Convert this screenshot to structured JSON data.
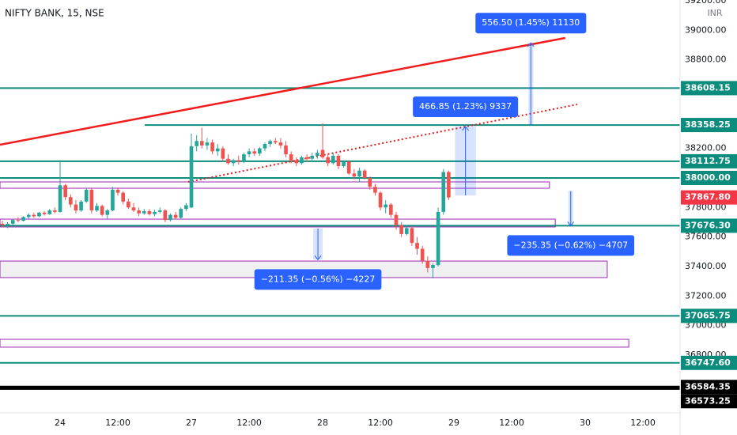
{
  "chart_data": {
    "type": "candlestick",
    "title": "NIFTY BANK, 15, NSE",
    "currency": "INR",
    "up_color": "#26a69a",
    "down_color": "#ef5350",
    "xlim": [
      -0.45,
      129.07
    ],
    "ylim": [
      36259,
      39205
    ],
    "xticks": [
      {
        "value": 11,
        "label": "24"
      },
      {
        "value": 22,
        "label": "12:00"
      },
      {
        "value": 36,
        "label": "27"
      },
      {
        "value": 47,
        "label": "12:00"
      },
      {
        "value": 61,
        "label": "28"
      },
      {
        "value": 72,
        "label": "12:00"
      },
      {
        "value": 86,
        "label": "29"
      },
      {
        "value": 97,
        "label": "12:00"
      },
      {
        "value": 111,
        "label": "30"
      },
      {
        "value": 122,
        "label": "12:00"
      }
    ],
    "yticks": [
      {
        "value": 39200,
        "label": "39200.00"
      },
      {
        "value": 39000,
        "label": "39000.00"
      },
      {
        "value": 38800,
        "label": "38800.00"
      },
      {
        "value": 38200,
        "label": "38200.00"
      },
      {
        "value": 37800,
        "label": "37800.00"
      },
      {
        "value": 37600,
        "label": "37600.00"
      },
      {
        "value": 37400,
        "label": "37400.00"
      },
      {
        "value": 37200,
        "label": "37200.00"
      },
      {
        "value": 37000,
        "label": "37000.00"
      },
      {
        "value": 36800,
        "label": "36800.00"
      }
    ],
    "candles": [
      [
        37690,
        37710,
        37665,
        37680
      ],
      [
        37680,
        37700,
        37660,
        37690
      ],
      [
        37690,
        37720,
        37680,
        37715
      ],
      [
        37715,
        37735,
        37700,
        37710
      ],
      [
        37710,
        37740,
        37705,
        37735
      ],
      [
        37735,
        37760,
        37720,
        37750
      ],
      [
        37750,
        37765,
        37730,
        37740
      ],
      [
        37740,
        37770,
        37735,
        37765
      ],
      [
        37765,
        37775,
        37745,
        37755
      ],
      [
        37755,
        37790,
        37750,
        37780
      ],
      [
        37780,
        37800,
        37760,
        37770
      ],
      [
        37770,
        38120,
        37765,
        37950
      ],
      [
        37950,
        37960,
        37850,
        37870
      ],
      [
        37870,
        37890,
        37800,
        37820
      ],
      [
        37820,
        37850,
        37760,
        37780
      ],
      [
        37780,
        37850,
        37770,
        37840
      ],
      [
        37840,
        37930,
        37830,
        37920
      ],
      [
        37920,
        37935,
        37760,
        37780
      ],
      [
        37780,
        37830,
        37770,
        37810
      ],
      [
        37810,
        37820,
        37740,
        37750
      ],
      [
        37750,
        37790,
        37720,
        37780
      ],
      [
        37780,
        37940,
        37775,
        37920
      ],
      [
        37920,
        37935,
        37880,
        37900
      ],
      [
        37900,
        37910,
        37820,
        37840
      ],
      [
        37840,
        37860,
        37790,
        37800
      ],
      [
        37800,
        37830,
        37770,
        37780
      ],
      [
        37780,
        37800,
        37740,
        37760
      ],
      [
        37760,
        37790,
        37750,
        37775
      ],
      [
        37775,
        37790,
        37745,
        37755
      ],
      [
        37755,
        37785,
        37740,
        37770
      ],
      [
        37770,
        37800,
        37760,
        37780
      ],
      [
        37780,
        37790,
        37700,
        37715
      ],
      [
        37715,
        37760,
        37705,
        37750
      ],
      [
        37750,
        37770,
        37720,
        37730
      ],
      [
        37730,
        37800,
        37725,
        37790
      ],
      [
        37790,
        37830,
        37775,
        37815
      ],
      [
        37800,
        38300,
        37795,
        38215
      ],
      [
        38215,
        38290,
        38180,
        38250
      ],
      [
        38250,
        38340,
        38200,
        38220
      ],
      [
        38220,
        38270,
        38190,
        38240
      ],
      [
        38240,
        38260,
        38160,
        38180
      ],
      [
        38180,
        38230,
        38150,
        38200
      ],
      [
        38200,
        38215,
        38110,
        38130
      ],
      [
        38130,
        38160,
        38090,
        38100
      ],
      [
        38100,
        38130,
        38080,
        38120
      ],
      [
        38120,
        38150,
        38090,
        38110
      ],
      [
        38110,
        38170,
        38100,
        38160
      ],
      [
        38160,
        38200,
        38140,
        38180
      ],
      [
        38180,
        38200,
        38150,
        38165
      ],
      [
        38165,
        38210,
        38150,
        38200
      ],
      [
        38200,
        38240,
        38180,
        38230
      ],
      [
        38230,
        38260,
        38210,
        38250
      ],
      [
        38250,
        38270,
        38230,
        38240
      ],
      [
        38240,
        38270,
        38200,
        38220
      ],
      [
        38220,
        38250,
        38140,
        38160
      ],
      [
        38160,
        38180,
        38100,
        38120
      ],
      [
        38120,
        38140,
        38080,
        38100
      ],
      [
        38100,
        38150,
        38090,
        38140
      ],
      [
        38140,
        38160,
        38110,
        38130
      ],
      [
        38130,
        38170,
        38110,
        38150
      ],
      [
        38150,
        38190,
        38130,
        38170
      ],
      [
        38190,
        38370,
        38130,
        38140
      ],
      [
        38140,
        38160,
        38080,
        38100
      ],
      [
        38100,
        38170,
        38090,
        38150
      ],
      [
        38150,
        38160,
        38060,
        38080
      ],
      [
        38080,
        38120,
        38070,
        38110
      ],
      [
        38110,
        38120,
        38020,
        38030
      ],
      [
        38030,
        38060,
        37990,
        38010
      ],
      [
        38010,
        38070,
        37970,
        38050
      ],
      [
        38050,
        38060,
        37990,
        38000
      ],
      [
        38000,
        38010,
        37920,
        37940
      ],
      [
        37940,
        37960,
        37880,
        37900
      ],
      [
        37900,
        37910,
        37780,
        37800
      ],
      [
        37800,
        37850,
        37760,
        37820
      ],
      [
        37820,
        37830,
        37730,
        37750
      ],
      [
        37750,
        37770,
        37650,
        37680
      ],
      [
        37680,
        37700,
        37600,
        37620
      ],
      [
        37620,
        37680,
        37610,
        37660
      ],
      [
        37660,
        37670,
        37540,
        37560
      ],
      [
        37560,
        37600,
        37480,
        37520
      ],
      [
        37520,
        37540,
        37420,
        37440
      ],
      [
        37440,
        37470,
        37360,
        37390
      ],
      [
        37390,
        37420,
        37320,
        37410
      ],
      [
        37410,
        37800,
        37400,
        37770
      ],
      [
        37770,
        38060,
        37750,
        38040
      ],
      [
        38040,
        38050,
        37850,
        37867.8
      ]
    ],
    "last_price": {
      "value": 37867.8,
      "label": "37867.80"
    },
    "levels": [
      {
        "value": 38608.15,
        "label": "38608.15",
        "color": "#0b8c7c",
        "start": -0.45
      },
      {
        "value": 38358.25,
        "label": "38358.25",
        "color": "#0b8c7c",
        "start": 27.1
      },
      {
        "value": 38112.75,
        "label": "38112.75",
        "color": "#0b8c7c",
        "start": -0.45
      },
      {
        "value": 38000,
        "label": "38000.00",
        "color": "#0b8c7c",
        "start": -0.45
      },
      {
        "value": 37676.3,
        "label": "37676.30",
        "color": "#0b8c7c",
        "start": -0.45
      },
      {
        "value": 37065.75,
        "label": "37065.75",
        "color": "#0b8c7c",
        "start": -0.45
      },
      {
        "value": 36747.6,
        "label": "36747.60",
        "color": "#0b8c7c",
        "start": -0.45
      },
      {
        "value": 36584.35,
        "label": "36584.35",
        "color": "#000000",
        "start": -0.45
      },
      {
        "value": 36573.25,
        "label": "36573.25",
        "color": "#000000",
        "start": -0.45
      }
    ],
    "trend_lines": [
      {
        "x": [
          -0.45,
          107.2
        ],
        "y": [
          38225,
          38948
        ],
        "color": "#f01c1c",
        "dashed": false
      },
      {
        "x": [
          35.4,
          109.5
        ],
        "y": [
          37973,
          38498
        ],
        "color": "#e31b1b",
        "dashed": true
      }
    ],
    "zones": [
      {
        "x": [
          -0.45,
          104.2
        ],
        "y": [
          37930,
          37973
        ],
        "fill": "#ffffff"
      },
      {
        "x": [
          -0.45,
          105.3
        ],
        "y": [
          37668,
          37721
        ],
        "fill": "#ffffff"
      },
      {
        "x": [
          -0.45,
          115.2
        ],
        "y": [
          37325,
          37437
        ],
        "fill": "#f0f0f3"
      },
      {
        "x": [
          -0.45,
          119.3
        ],
        "y": [
          36854,
          36907
        ],
        "fill": "#ffffff"
      }
    ],
    "measures": [
      {
        "label": "556.50 (1.45%) 11130",
        "x": [
          100.2,
          101.1
        ],
        "from": 38358.25,
        "to": 38914.75
      },
      {
        "label": "466.85 (1.23%) 9337",
        "x": [
          86.2,
          90.2
        ],
        "from": 37881.4,
        "to": 38348.25
      },
      {
        "label": "−211.35 (−0.56%) −4227",
        "x": [
          59.2,
          61
        ],
        "from": 37657.65,
        "to": 37446.3
      },
      {
        "label": "−235.35 (−0.62%) −4707",
        "x": [
          107.8,
          108.7
        ],
        "from": 37911.65,
        "to": 37676.3
      }
    ]
  }
}
